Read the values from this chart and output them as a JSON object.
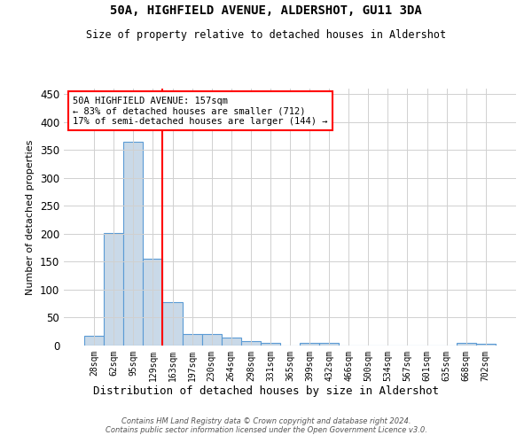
{
  "title": "50A, HIGHFIELD AVENUE, ALDERSHOT, GU11 3DA",
  "subtitle": "Size of property relative to detached houses in Aldershot",
  "xlabel": "Distribution of detached houses by size in Aldershot",
  "ylabel": "Number of detached properties",
  "footer_line1": "Contains HM Land Registry data © Crown copyright and database right 2024.",
  "footer_line2": "Contains public sector information licensed under the Open Government Licence v3.0.",
  "bar_labels": [
    "28sqm",
    "62sqm",
    "95sqm",
    "129sqm",
    "163sqm",
    "197sqm",
    "230sqm",
    "264sqm",
    "298sqm",
    "331sqm",
    "365sqm",
    "399sqm",
    "432sqm",
    "466sqm",
    "500sqm",
    "534sqm",
    "567sqm",
    "601sqm",
    "635sqm",
    "668sqm",
    "702sqm"
  ],
  "bar_values": [
    18,
    202,
    365,
    155,
    78,
    21,
    20,
    14,
    8,
    5,
    0,
    5,
    4,
    0,
    0,
    0,
    0,
    0,
    0,
    4,
    3
  ],
  "bar_color": "#c9d9e8",
  "bar_edge_color": "#5b9bd5",
  "property_line_color": "red",
  "property_line_x": 3.5,
  "annotation_title": "50A HIGHFIELD AVENUE: 157sqm",
  "annotation_line1": "← 83% of detached houses are smaller (712)",
  "annotation_line2": "17% of semi-detached houses are larger (144) →",
  "annotation_box_color": "white",
  "annotation_box_edge": "red",
  "ylim": [
    0,
    460
  ],
  "yticks": [
    0,
    50,
    100,
    150,
    200,
    250,
    300,
    350,
    400,
    450
  ],
  "background_color": "white",
  "grid_color": "#d0d0d0",
  "title_fontsize": 10,
  "subtitle_fontsize": 8.5
}
